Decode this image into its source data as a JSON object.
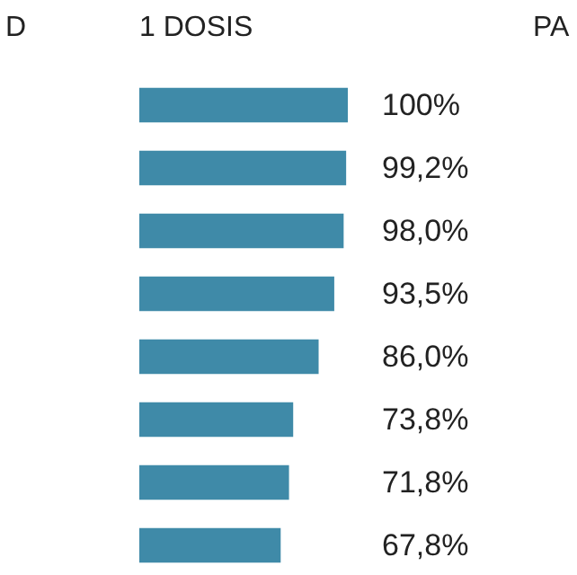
{
  "chart_data": {
    "type": "bar",
    "orientation": "horizontal",
    "title": "1 DOSIS",
    "annotations": [
      "D",
      "PA"
    ],
    "categories": [
      null,
      null,
      null,
      null,
      null,
      null,
      null,
      null
    ],
    "values": [
      100,
      99.2,
      98.0,
      93.5,
      86.0,
      73.8,
      71.8,
      67.8
    ],
    "value_labels": [
      "100%",
      "99,2%",
      "98,0%",
      "93,5%",
      "86,0%",
      "73,8%",
      "71,8%",
      "67,8%"
    ],
    "color": "#3f8aa8",
    "tick_labels": false
  }
}
